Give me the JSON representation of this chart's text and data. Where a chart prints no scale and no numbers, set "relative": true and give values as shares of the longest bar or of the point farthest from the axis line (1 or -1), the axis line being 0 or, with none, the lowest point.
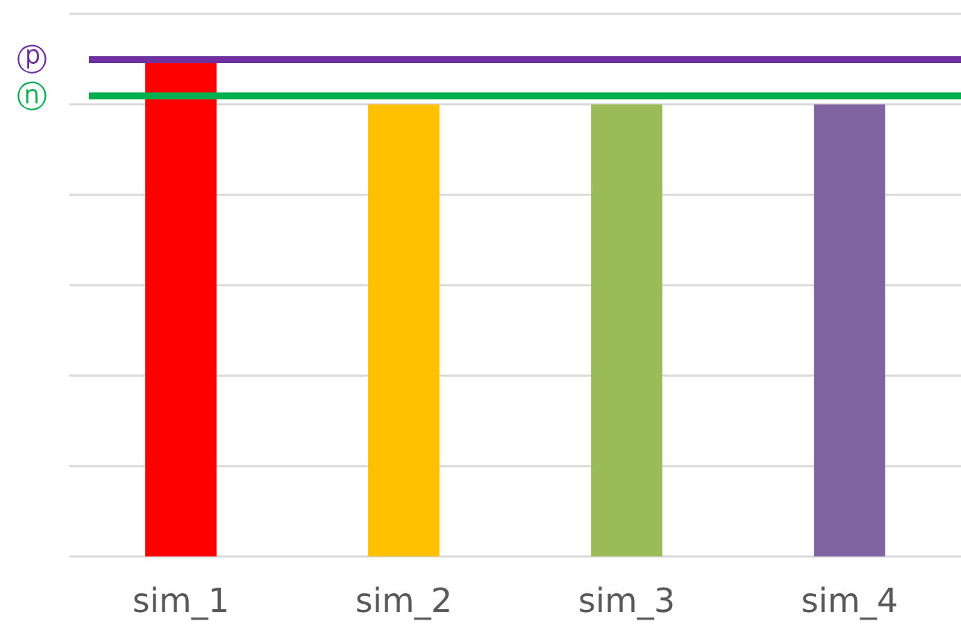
{
  "chart_data": {
    "type": "bar",
    "relative": true,
    "grid": "y",
    "categories": [
      "sim_1",
      "sim_2",
      "sim_3",
      "sim_4"
    ],
    "values": [
      1,
      0.91,
      0.91,
      0.91
    ],
    "colors": [
      "#ff0000",
      "#ffc000",
      "#9bbb59",
      "#8064a2"
    ],
    "ref_lines": [
      {
        "axis": "y",
        "value": 1,
        "label": "ⓟ",
        "color": "#7030a0"
      },
      {
        "axis": "y",
        "value": 0.927,
        "label": "ⓝ",
        "color": "#00b050"
      }
    ]
  }
}
